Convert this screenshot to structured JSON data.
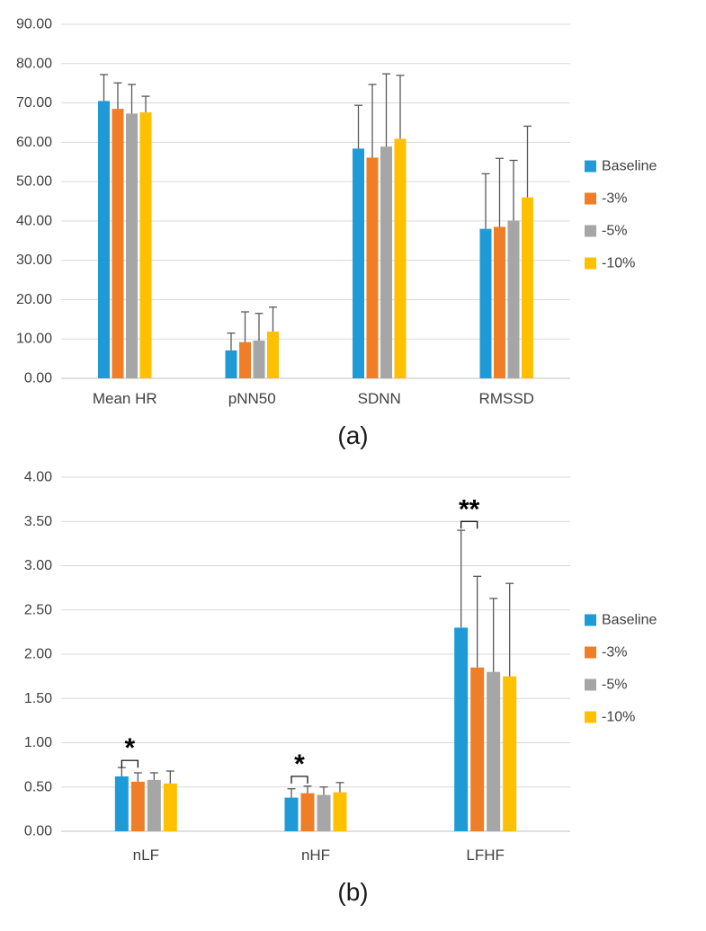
{
  "figure": {
    "background": "#ffffff",
    "panel_labels": [
      "(a)",
      "(b)"
    ]
  },
  "chart_data": [
    {
      "type": "bar",
      "panel_label": "(a)",
      "categories": [
        "Mean HR",
        "pNN50",
        "SDNN",
        "RMSSD"
      ],
      "series": [
        {
          "name": "Baseline",
          "color": "#1E9BD7",
          "values": [
            70.5,
            7.1,
            58.4,
            38.0
          ],
          "errors": [
            6.7,
            4.4,
            11.0,
            14.0
          ]
        },
        {
          "name": "-3%",
          "color": "#F07E26",
          "values": [
            68.5,
            9.2,
            56.1,
            38.5
          ],
          "errors": [
            6.6,
            7.7,
            18.6,
            17.4
          ]
        },
        {
          "name": "-5%",
          "color": "#A6A6A6",
          "values": [
            67.3,
            9.6,
            58.9,
            40.1
          ],
          "errors": [
            7.4,
            6.9,
            18.5,
            15.3
          ]
        },
        {
          "name": "-10%",
          "color": "#FFC000",
          "values": [
            67.6,
            11.9,
            60.9,
            46.0
          ],
          "errors": [
            4.1,
            6.2,
            16.1,
            18.1
          ]
        }
      ],
      "ylim": [
        0,
        90
      ],
      "ytick_step": 10,
      "ytick_decimals": 2,
      "grid": true,
      "legend_position": "right",
      "significance": []
    },
    {
      "type": "bar",
      "panel_label": "(b)",
      "categories": [
        "nLF",
        "nHF",
        "LFHF"
      ],
      "series": [
        {
          "name": "Baseline",
          "color": "#1E9BD7",
          "values": [
            0.62,
            0.38,
            2.3
          ],
          "errors": [
            0.1,
            0.1,
            1.1
          ]
        },
        {
          "name": "-3%",
          "color": "#F07E26",
          "values": [
            0.56,
            0.43,
            1.85
          ],
          "errors": [
            0.1,
            0.08,
            1.03
          ]
        },
        {
          "name": "-5%",
          "color": "#A6A6A6",
          "values": [
            0.58,
            0.41,
            1.8
          ],
          "errors": [
            0.08,
            0.09,
            0.83
          ]
        },
        {
          "name": "-10%",
          "color": "#FFC000",
          "values": [
            0.54,
            0.44,
            1.75
          ],
          "errors": [
            0.14,
            0.11,
            1.05
          ]
        }
      ],
      "ylim": [
        0,
        4
      ],
      "ytick_step": 0.5,
      "ytick_decimals": 2,
      "grid": true,
      "legend_position": "right",
      "significance": [
        {
          "category_index": 0,
          "series_a": 0,
          "series_b": 1,
          "level_value": 0.8,
          "label": "*"
        },
        {
          "category_index": 1,
          "series_a": 0,
          "series_b": 1,
          "level_value": 0.62,
          "label": "*"
        },
        {
          "category_index": 2,
          "series_a": 0,
          "series_b": 1,
          "level_value": 3.5,
          "label": "**"
        }
      ]
    }
  ],
  "colors": {
    "gridline": "#D9D9D9",
    "axis_line": "#BFBFBF",
    "error_bar": "#595959",
    "tick_text": "#404040",
    "panel_text": "#1a1a1a",
    "significance": "#000000"
  }
}
